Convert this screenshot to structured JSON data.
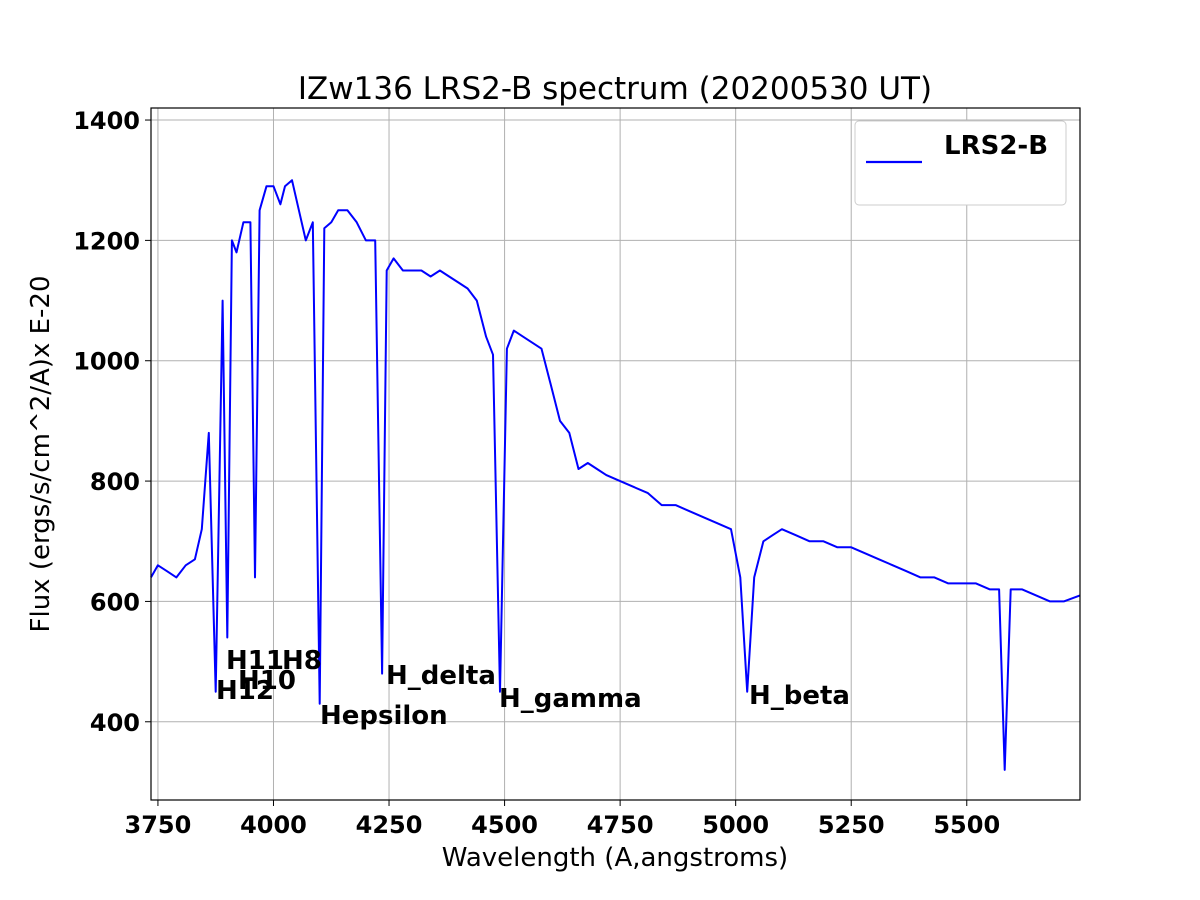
{
  "chart_data": {
    "type": "line",
    "title": "IZw136 LRS2-B spectrum (20200530 UT)",
    "xlabel": "Wavelength (A,angstroms)",
    "ylabel": "Flux (ergs/s/cm^2/A)x E-20",
    "xlim": [
      3735,
      5745
    ],
    "ylim": [
      270,
      1420
    ],
    "xticks": [
      3750,
      4000,
      4250,
      4500,
      4750,
      5000,
      5250,
      5500
    ],
    "yticks": [
      400,
      600,
      800,
      1000,
      1200,
      1400
    ],
    "grid": true,
    "legend_position": "top-right",
    "series": [
      {
        "name": "LRS2-B",
        "color": "#0000ff",
        "x": [
          3735,
          3750,
          3770,
          3790,
          3810,
          3830,
          3845,
          3860,
          3875,
          3890,
          3900,
          3910,
          3920,
          3935,
          3950,
          3960,
          3970,
          3985,
          4000,
          4015,
          4025,
          4040,
          4055,
          4070,
          4085,
          4100,
          4110,
          4125,
          4140,
          4160,
          4180,
          4200,
          4220,
          4235,
          4245,
          4260,
          4280,
          4300,
          4320,
          4340,
          4360,
          4380,
          4400,
          4420,
          4440,
          4460,
          4475,
          4490,
          4505,
          4520,
          4540,
          4560,
          4580,
          4600,
          4620,
          4640,
          4660,
          4680,
          4700,
          4720,
          4750,
          4780,
          4810,
          4840,
          4870,
          4900,
          4930,
          4960,
          4990,
          5010,
          5025,
          5040,
          5060,
          5080,
          5100,
          5130,
          5160,
          5190,
          5220,
          5250,
          5280,
          5310,
          5340,
          5370,
          5400,
          5430,
          5460,
          5490,
          5520,
          5550,
          5570,
          5582,
          5595,
          5620,
          5650,
          5680,
          5710,
          5745
        ],
        "y": [
          640,
          660,
          650,
          640,
          660,
          670,
          720,
          880,
          450,
          1100,
          540,
          1200,
          1180,
          1230,
          1230,
          640,
          1250,
          1290,
          1290,
          1260,
          1290,
          1300,
          1250,
          1200,
          1230,
          430,
          1220,
          1230,
          1250,
          1250,
          1230,
          1200,
          1200,
          480,
          1150,
          1170,
          1150,
          1150,
          1150,
          1140,
          1150,
          1140,
          1130,
          1120,
          1100,
          1040,
          1010,
          450,
          1020,
          1050,
          1040,
          1030,
          1020,
          960,
          900,
          880,
          820,
          830,
          820,
          810,
          800,
          790,
          780,
          760,
          760,
          750,
          740,
          730,
          720,
          640,
          450,
          640,
          700,
          710,
          720,
          710,
          700,
          700,
          690,
          690,
          680,
          670,
          660,
          650,
          640,
          640,
          630,
          630,
          630,
          620,
          620,
          320,
          620,
          620,
          610,
          600,
          600,
          610
        ]
      }
    ],
    "annotations": [
      "H12",
      "H11",
      "H10",
      "H8",
      "Hepsilon",
      "H_delta",
      "H_gamma",
      "H_beta"
    ]
  }
}
